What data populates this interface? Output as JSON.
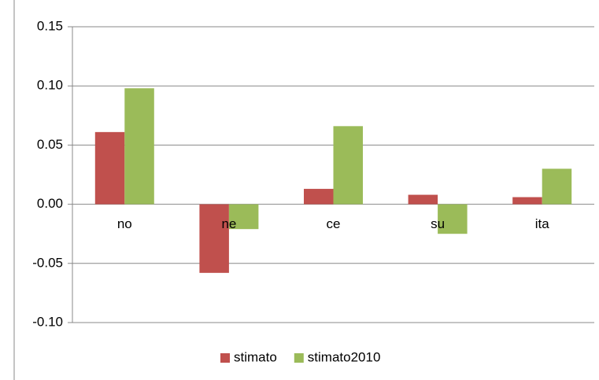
{
  "chart_data": {
    "type": "bar",
    "categories": [
      "no",
      "ne",
      "ce",
      "su",
      "ita"
    ],
    "series": [
      {
        "name": "stimato",
        "color": "#c0504d",
        "values": [
          0.061,
          -0.058,
          0.013,
          0.008,
          0.006
        ]
      },
      {
        "name": "stimato2010",
        "color": "#9bbb59",
        "values": [
          0.098,
          -0.021,
          0.066,
          -0.025,
          0.03
        ]
      }
    ],
    "ylim": [
      -0.1,
      0.15
    ],
    "yticks": [
      {
        "value": -0.1,
        "label": "-0.10"
      },
      -0.05,
      {
        "value": 0,
        "label": "0.00"
      },
      0.05,
      {
        "value": 0.1,
        "label": "0.10"
      },
      0.15
    ],
    "grid": true,
    "legend": "bottom"
  }
}
